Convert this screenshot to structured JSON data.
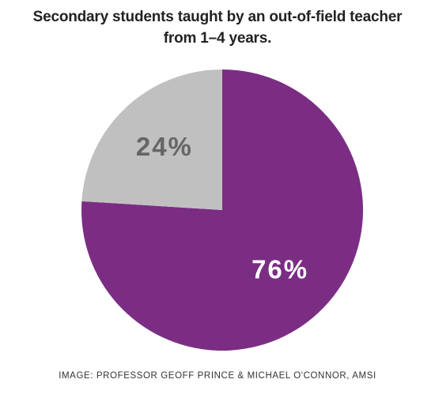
{
  "chart_data": {
    "type": "pie",
    "title": "Secondary students taught by an out-of-field teacher from 1–4 years.",
    "values": [
      76,
      24
    ],
    "value_labels": [
      "76%",
      "24%"
    ],
    "colors": [
      "#7b2d84",
      "#c0c0c0"
    ],
    "label_colors": [
      "#ffffff",
      "#666666"
    ],
    "start_angle": -90,
    "source": "IMAGE: PROFESSOR GEOFF PRINCE & MICHAEL O'CONNOR, AMSI"
  }
}
